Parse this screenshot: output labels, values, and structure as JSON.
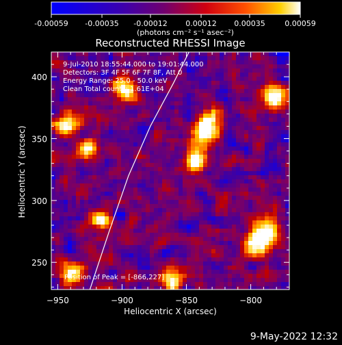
{
  "colorbar": {
    "ticks": [
      "-0.00059",
      "-0.00035",
      "-0.00012",
      "0.00012",
      "0.00035",
      "0.00059"
    ],
    "units": "(photons cm⁻² s⁻¹ asec⁻²)"
  },
  "plot": {
    "title": "Reconstructed RHESSI Image",
    "info_lines": [
      "9-Jul-2010 18:55:44.000 to 19:01:44.000",
      "Detectors: 3F 4F 5F 6F 7F 8F, Att 0",
      "Energy Range: 25.0 - 50.0 keV",
      "Clean      Total counts: 1.61E+04"
    ],
    "peak_label": "Position of Peak = [-866,227]",
    "xlabel": "Heliocentric X (arcsec)",
    "ylabel": "Heliocentric Y (arcsec)"
  },
  "footer": {
    "timestamp": "9-May-2022 12:32"
  },
  "chart_data": {
    "type": "heatmap",
    "title": "Reconstructed RHESSI Image",
    "xlabel": "Heliocentric X (arcsec)",
    "ylabel": "Heliocentric Y (arcsec)",
    "xlim": [
      -955,
      -770
    ],
    "ylim": [
      228,
      420
    ],
    "xticks": [
      -950,
      -900,
      -850,
      -800
    ],
    "yticks": [
      250,
      300,
      350,
      400
    ],
    "colorbar_range": [
      -0.00059,
      0.00059
    ],
    "colorbar_ticks": [
      -0.00059,
      -0.00035,
      -0.00012,
      0.00012,
      0.00035,
      0.00059
    ],
    "colorbar_units": "(photons cm⁻² s⁻¹ asec⁻²)",
    "colormap": [
      "#0000ff",
      "#4000a0",
      "#800060",
      "#c00000",
      "#ff6000",
      "#ffd000",
      "#ffffff"
    ],
    "peak_position": [
      -866,
      227
    ],
    "limb_curve": [
      {
        "x": -925,
        "y": 228
      },
      {
        "x": -910,
        "y": 275
      },
      {
        "x": -895,
        "y": 320
      },
      {
        "x": -878,
        "y": 360
      },
      {
        "x": -860,
        "y": 395
      },
      {
        "x": -848,
        "y": 420
      }
    ]
  }
}
